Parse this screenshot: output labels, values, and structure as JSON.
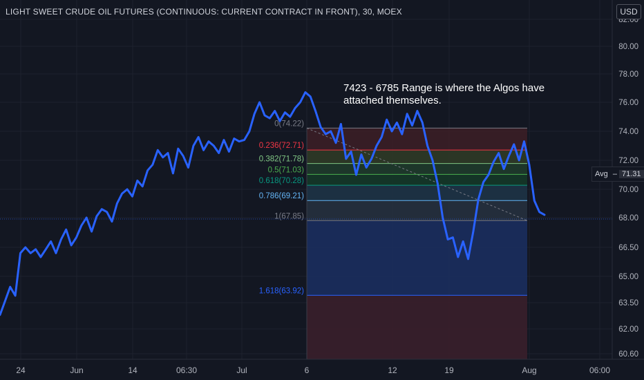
{
  "header": {
    "title": "LIGHT SWEET CRUDE OIL FUTURES (CONTINUOUS: CURRENT CONTRACT IN FRONT), 30, MOEX",
    "currency": "USD"
  },
  "annotation": "7423 - 6785 Range is where the Algos have attached themselves.",
  "avg_label": {
    "name": "Avg",
    "value": "71.31"
  },
  "colors": {
    "background": "#131722",
    "line": "#2962ff",
    "text": "#b2b5be"
  },
  "chart_data": {
    "type": "line",
    "title": "LIGHT SWEET CRUDE OIL FUTURES (CONTINUOUS: CURRENT CONTRACT IN FRONT), 30, MOEX",
    "xlabel": "",
    "ylabel": "",
    "ylim": [
      60.2,
      82.5
    ],
    "y_ticks": [
      "82.00",
      "80.00",
      "78.00",
      "76.00",
      "74.00",
      "72.00",
      "70.00",
      "68.00",
      "66.50",
      "65.00",
      "63.50",
      "62.00",
      "60.60"
    ],
    "x_ticks": [
      "24",
      "Jun",
      "14",
      "06:30",
      "Jul",
      "6",
      "12",
      "19",
      "Aug",
      "06:00"
    ],
    "series": [
      {
        "values": [
          62.8,
          63.6,
          64.4,
          63.9,
          66.2,
          66.5,
          66.2,
          66.4,
          66.0,
          66.4,
          66.8,
          66.2,
          66.9,
          67.4,
          66.6,
          67.0,
          67.6,
          68.0,
          67.3,
          68.1,
          68.6,
          68.4,
          67.8,
          69.0,
          69.7,
          70.0,
          69.5,
          70.6,
          70.2,
          71.3,
          71.7,
          72.7,
          72.2,
          72.5,
          71.1,
          72.8,
          72.3,
          71.5,
          73.0,
          73.6,
          72.7,
          73.3,
          73.0,
          72.5,
          73.4,
          72.6,
          73.5,
          73.3,
          73.4,
          74.0,
          75.2,
          76.0,
          75.1,
          74.9,
          75.4,
          74.7,
          75.3,
          75.0,
          75.6,
          76.0,
          76.7,
          76.4,
          75.4,
          74.3,
          73.8,
          74.0,
          73.2,
          74.5,
          72.1,
          72.6,
          71.0,
          72.4,
          71.5,
          72.1,
          73.0,
          73.6,
          74.8,
          74.0,
          74.6,
          73.8,
          75.2,
          74.4,
          75.4,
          74.6,
          73.0,
          72.0,
          70.4,
          68.0,
          66.9,
          67.0,
          66.0,
          66.8,
          65.9,
          67.3,
          69.3,
          70.5,
          71.0,
          71.9,
          72.5,
          71.4,
          72.3,
          73.1,
          72.0,
          73.3,
          71.7,
          69.2,
          68.4,
          68.2
        ]
      }
    ],
    "fibonacci": {
      "levels": [
        {
          "ratio": "0",
          "price": 74.22,
          "label": "0(74.22)",
          "color": "#787b86"
        },
        {
          "ratio": "0.236",
          "price": 72.71,
          "label": "0.236(72.71)",
          "color": "#f23645"
        },
        {
          "ratio": "0.382",
          "price": 71.78,
          "label": "0.382(71.78)",
          "color": "#81c784"
        },
        {
          "ratio": "0.5",
          "price": 71.03,
          "label": "0.5(71.03)",
          "color": "#4caf50"
        },
        {
          "ratio": "0.618",
          "price": 70.28,
          "label": "0.618(70.28)",
          "color": "#089981"
        },
        {
          "ratio": "0.786",
          "price": 69.21,
          "label": "0.786(69.21)",
          "color": "#64b5f6"
        },
        {
          "ratio": "1",
          "price": 67.85,
          "label": "1(67.85)",
          "color": "#787b86"
        },
        {
          "ratio": "1.618",
          "price": 63.92,
          "label": "1.618(63.92)",
          "color": "#2962ff"
        }
      ],
      "x_start_label": "6",
      "x_end_label": "Aug"
    }
  }
}
